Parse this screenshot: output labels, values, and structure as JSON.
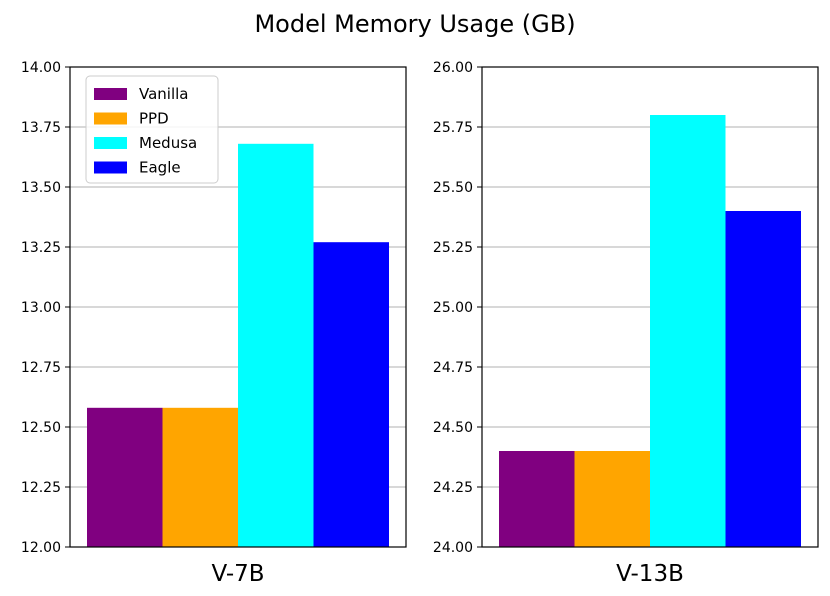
{
  "title": "Model Memory Usage (GB)",
  "chart_data": [
    {
      "type": "bar",
      "title": "",
      "xlabel": "V-7B",
      "ylabel": "",
      "ylim": [
        12.0,
        14.0
      ],
      "yticks": [
        "12.00",
        "12.25",
        "12.50",
        "12.75",
        "13.00",
        "13.25",
        "13.50",
        "13.75",
        "14.00"
      ],
      "grid": "horizontal",
      "legend": "top-left",
      "series": [
        {
          "name": "Vanilla",
          "value": 12.58,
          "color": "#800080"
        },
        {
          "name": "PPD",
          "value": 12.58,
          "color": "#FFA500"
        },
        {
          "name": "Medusa",
          "value": 13.68,
          "color": "#00FFFF"
        },
        {
          "name": "Eagle",
          "value": 13.27,
          "color": "#0000FF"
        }
      ]
    },
    {
      "type": "bar",
      "title": "",
      "xlabel": "V-13B",
      "ylabel": "",
      "ylim": [
        24.0,
        26.0
      ],
      "yticks": [
        "24.00",
        "24.25",
        "24.50",
        "24.75",
        "25.00",
        "25.25",
        "25.50",
        "25.75",
        "26.00"
      ],
      "grid": "horizontal",
      "series": [
        {
          "name": "Vanilla",
          "value": 24.4,
          "color": "#800080"
        },
        {
          "name": "PPD",
          "value": 24.4,
          "color": "#FFA500"
        },
        {
          "name": "Medusa",
          "value": 25.8,
          "color": "#00FFFF"
        },
        {
          "name": "Eagle",
          "value": 25.4,
          "color": "#0000FF"
        }
      ]
    }
  ]
}
